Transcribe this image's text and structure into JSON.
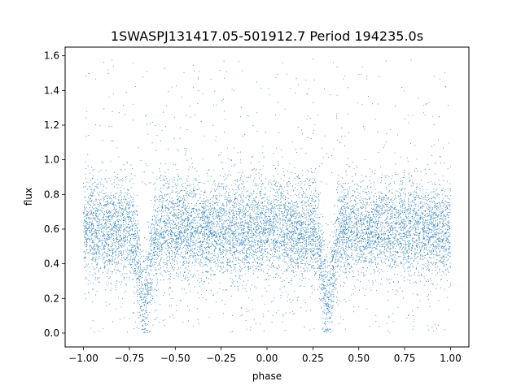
{
  "chart_data": {
    "type": "scatter",
    "title": "1SWASPJ131417.05-501912.7 Period 194235.0s",
    "xlabel": "phase",
    "ylabel": "flux",
    "xlim": [
      -1.1,
      1.1
    ],
    "ylim": [
      -0.08,
      1.65
    ],
    "x_ticks": [
      -1.0,
      -0.75,
      -0.5,
      -0.25,
      0.0,
      0.25,
      0.5,
      0.75,
      1.0
    ],
    "x_tick_labels": [
      "−1.00",
      "−0.75",
      "−0.50",
      "−0.25",
      "0.00",
      "0.25",
      "0.50",
      "0.75",
      "1.00"
    ],
    "y_ticks": [
      0.0,
      0.2,
      0.4,
      0.6,
      0.8,
      1.0,
      1.2,
      1.4,
      1.6
    ],
    "y_tick_labels": [
      "0.0",
      "0.2",
      "0.4",
      "0.6",
      "0.8",
      "1.0",
      "1.2",
      "1.4",
      "1.6"
    ],
    "grid": false,
    "marker_color": "#1f77b4",
    "series": [
      {
        "phase_range": [
          -1.0,
          1.0
        ],
        "baseline_flux": 0.6,
        "flux_range": [
          0.0,
          1.58
        ],
        "dips": [
          {
            "phase": -0.67,
            "min_flux": 0.05
          },
          {
            "phase": 0.33,
            "min_flux": 0.05
          }
        ]
      }
    ]
  }
}
